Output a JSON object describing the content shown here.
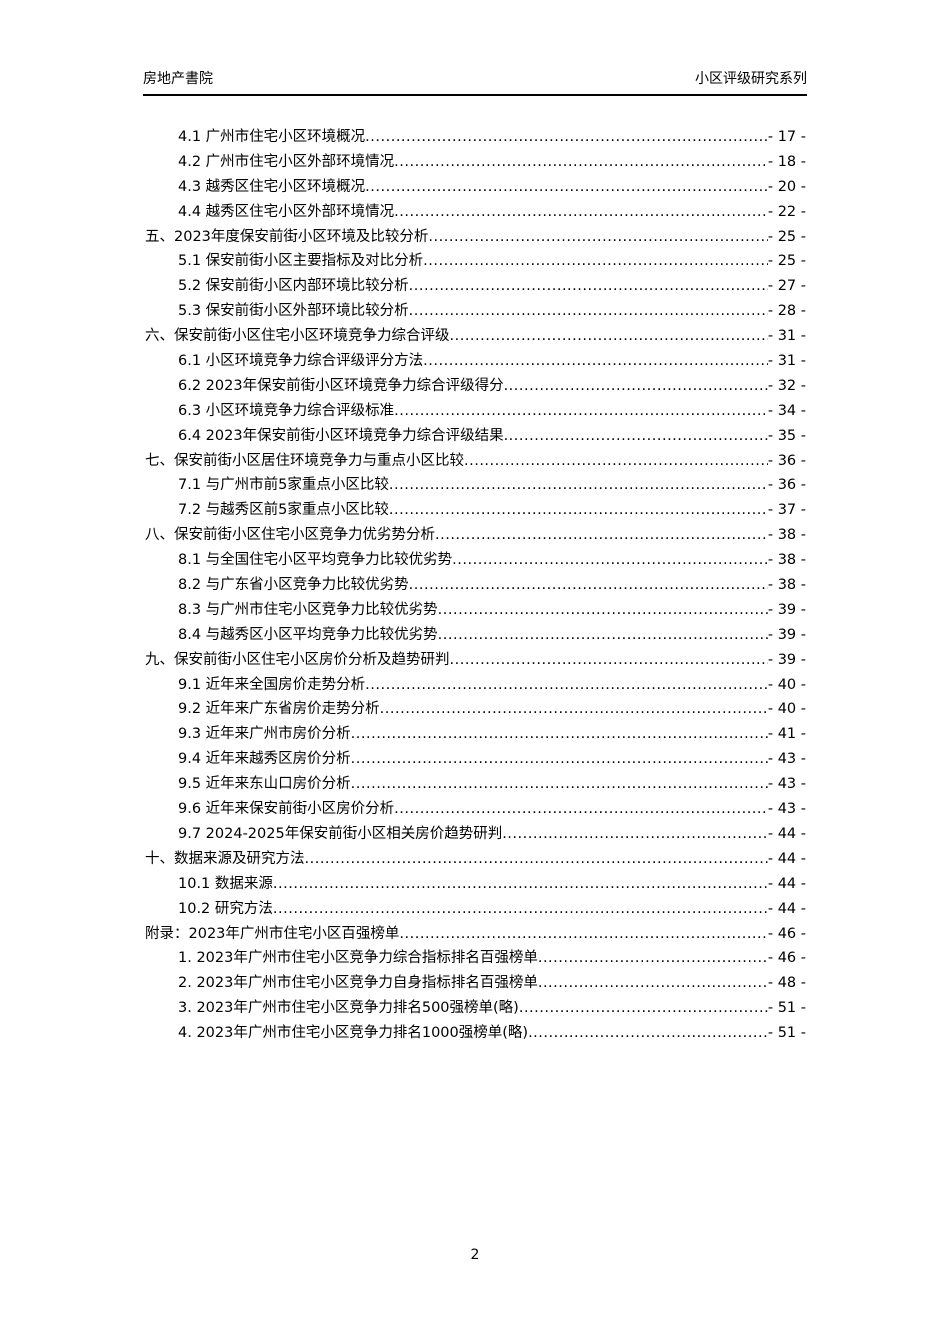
{
  "header": {
    "left": "房地产書院",
    "right": "小区评级研究系列"
  },
  "toc": [
    {
      "level": 2,
      "title": "4.1 广州市住宅小区环境概况",
      "page": "- 17 -"
    },
    {
      "level": 2,
      "title": "4.2 广州市住宅小区外部环境情况",
      "page": "- 18 -"
    },
    {
      "level": 2,
      "title": "4.3 越秀区住宅小区环境概况",
      "page": "- 20 -"
    },
    {
      "level": 2,
      "title": "4.4 越秀区住宅小区外部环境情况",
      "page": "- 22 -"
    },
    {
      "level": 1,
      "title": "五、2023年度保安前街小区环境及比较分析",
      "page": "- 25 -"
    },
    {
      "level": 2,
      "title": "5.1 保安前街小区主要指标及对比分析",
      "page": "- 25 -"
    },
    {
      "level": 2,
      "title": "5.2 保安前街小区内部环境比较分析",
      "page": "- 27 -"
    },
    {
      "level": 2,
      "title": "5.3 保安前街小区外部环境比较分析",
      "page": "- 28 -"
    },
    {
      "level": 1,
      "title": "六、保安前街小区住宅小区环境竞争力综合评级",
      "page": "- 31 -"
    },
    {
      "level": 2,
      "title": "6.1 小区环境竞争力综合评级评分方法",
      "page": "- 31 -"
    },
    {
      "level": 2,
      "title": "6.2 2023年保安前街小区环境竞争力综合评级得分",
      "page": "- 32 -"
    },
    {
      "level": 2,
      "title": "6.3 小区环境竞争力综合评级标准",
      "page": "- 34 -"
    },
    {
      "level": 2,
      "title": "6.4 2023年保安前街小区环境竞争力综合评级结果",
      "page": "- 35 -"
    },
    {
      "level": 1,
      "title": "七、保安前街小区居住环境竞争力与重点小区比较",
      "page": "- 36 -"
    },
    {
      "level": 2,
      "title": "7.1 与广州市前5家重点小区比较",
      "page": "- 36 -"
    },
    {
      "level": 2,
      "title": "7.2 与越秀区前5家重点小区比较",
      "page": "- 37 -"
    },
    {
      "level": 1,
      "title": "八、保安前街小区住宅小区竞争力优劣势分析",
      "page": "- 38 -"
    },
    {
      "level": 2,
      "title": "8.1 与全国住宅小区平均竞争力比较优劣势",
      "page": "- 38 -"
    },
    {
      "level": 2,
      "title": "8.2 与广东省小区竞争力比较优劣势",
      "page": "- 38 -"
    },
    {
      "level": 2,
      "title": "8.3 与广州市住宅小区竞争力比较优劣势",
      "page": "- 39 -"
    },
    {
      "level": 2,
      "title": "8.4 与越秀区小区平均竞争力比较优劣势",
      "page": "- 39 -"
    },
    {
      "level": 1,
      "title": "九、保安前街小区住宅小区房价分析及趋势研判",
      "page": "- 39 -"
    },
    {
      "level": 2,
      "title": "9.1 近年来全国房价走势分析",
      "page": "- 40 -"
    },
    {
      "level": 2,
      "title": "9.2 近年来广东省房价走势分析",
      "page": "- 40 -"
    },
    {
      "level": 2,
      "title": "9.3 近年来广州市房价分析",
      "page": "- 41 -"
    },
    {
      "level": 2,
      "title": "9.4 近年来越秀区房价分析",
      "page": "- 43 -"
    },
    {
      "level": 2,
      "title": "9.5 近年来东山口房价分析",
      "page": "- 43 -"
    },
    {
      "level": 2,
      "title": "9.6 近年来保安前街小区房价分析",
      "page": "- 43 -"
    },
    {
      "level": 2,
      "title": "9.7 2024-2025年保安前街小区相关房价趋势研判",
      "page": "- 44 -"
    },
    {
      "level": 1,
      "title": "十、数据来源及研究方法",
      "page": "- 44 -"
    },
    {
      "level": 2,
      "title": "10.1 数据来源",
      "page": "- 44 -"
    },
    {
      "level": 2,
      "title": "10.2 研究方法",
      "page": "- 44 -"
    },
    {
      "level": 1,
      "title": "附录：2023年广州市住宅小区百强榜单",
      "page": "- 46 -"
    },
    {
      "level": 2,
      "title": "1. 2023年广州市住宅小区竞争力综合指标排名百强榜单",
      "page": "- 46 -"
    },
    {
      "level": 2,
      "title": "2. 2023年广州市住宅小区竞争力自身指标排名百强榜单",
      "page": "- 48 -"
    },
    {
      "level": 2,
      "title": "3. 2023年广州市住宅小区竞争力排名500强榜单(略)",
      "page": "- 51 -"
    },
    {
      "level": 2,
      "title": "4. 2023年广州市住宅小区竞争力排名1000强榜单(略)",
      "page": "- 51 -"
    }
  ],
  "footer": {
    "page_number": "2"
  }
}
